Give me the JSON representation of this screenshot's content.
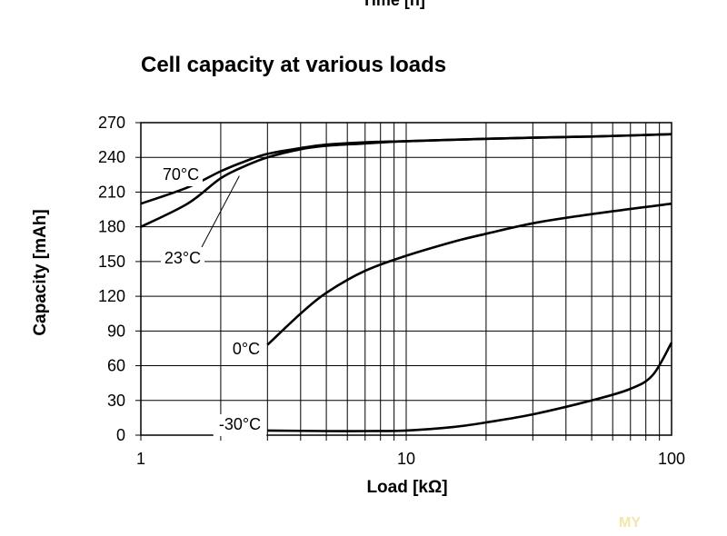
{
  "top_cut_text": "Time [h]",
  "watermark": "MY",
  "chart_data": {
    "type": "line",
    "title": "Cell capacity at various loads",
    "xlabel": "Load [kΩ]",
    "ylabel": "Capacity [mAh]",
    "xscale": "log",
    "xlim": [
      1,
      100
    ],
    "ylim": [
      0,
      270
    ],
    "xticks": [
      1,
      10,
      100
    ],
    "xtick_labels": [
      "1",
      "10",
      "100"
    ],
    "yticks": [
      0,
      30,
      60,
      90,
      120,
      150,
      180,
      210,
      240,
      270
    ],
    "ytick_labels": [
      "0",
      "30",
      "60",
      "90",
      "120",
      "150",
      "180",
      "210",
      "240",
      "270"
    ],
    "grid": true,
    "legend": "inline labels",
    "line_color": "#000000",
    "series": [
      {
        "name": "70°C",
        "x": [
          1,
          1.5,
          2,
          2.5,
          3,
          4,
          5,
          7,
          10,
          20,
          30,
          50,
          100
        ],
        "values": [
          200,
          214,
          228,
          237,
          243,
          248,
          251,
          253,
          254,
          256,
          257,
          258,
          260
        ]
      },
      {
        "name": "23°C",
        "x": [
          1,
          1.5,
          2,
          2.5,
          3,
          4,
          5,
          7,
          10,
          20,
          30,
          50,
          100
        ],
        "values": [
          180,
          200,
          222,
          233,
          240,
          247,
          250,
          252,
          254,
          256,
          257,
          258,
          260
        ]
      },
      {
        "name": "0°C",
        "x": [
          3,
          4,
          5,
          7,
          10,
          15,
          20,
          30,
          50,
          100
        ],
        "values": [
          78,
          105,
          123,
          142,
          155,
          167,
          174,
          183,
          191,
          200
        ]
      },
      {
        "name": "-30°C",
        "x": [
          3,
          5,
          7,
          10,
          15,
          20,
          30,
          50,
          70,
          85,
          100
        ],
        "values": [
          4,
          3.5,
          3.5,
          4,
          7,
          11,
          18,
          30,
          40,
          52,
          80
        ]
      }
    ]
  }
}
